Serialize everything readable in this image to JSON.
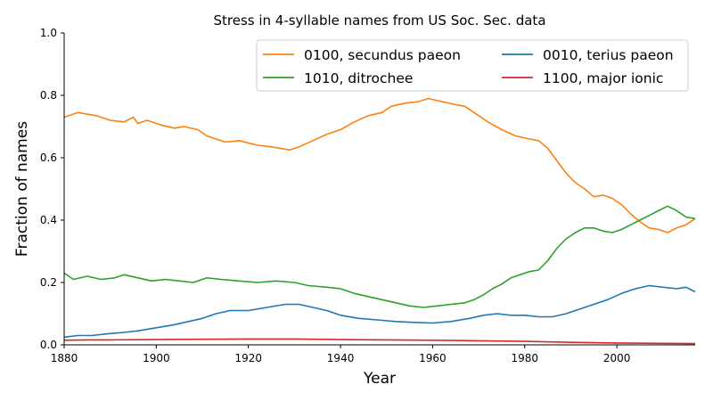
{
  "chart_data": {
    "type": "line",
    "title": "Stress in 4-syllable names from US Soc. Sec. data",
    "xlabel": "Year",
    "ylabel": "Fraction of names",
    "xlim": [
      1880,
      2017
    ],
    "ylim": [
      0.0,
      1.0
    ],
    "xticks": [
      "1880",
      "1900",
      "1920",
      "1940",
      "1960",
      "1980",
      "2000"
    ],
    "yticks": [
      "0.0",
      "0.2",
      "0.4",
      "0.6",
      "0.8",
      "1.0"
    ],
    "grid": false,
    "legend_placement": "upper right, two columns",
    "series": [
      {
        "name": "0100, secundus paeon",
        "color": "#ff7f0e",
        "points": [
          [
            1880,
            0.73
          ],
          [
            1883,
            0.745
          ],
          [
            1887,
            0.735
          ],
          [
            1890,
            0.72
          ],
          [
            1893,
            0.715
          ],
          [
            1895,
            0.73
          ],
          [
            1896,
            0.71
          ],
          [
            1898,
            0.72
          ],
          [
            1901,
            0.705
          ],
          [
            1904,
            0.695
          ],
          [
            1906,
            0.7
          ],
          [
            1909,
            0.69
          ],
          [
            1911,
            0.67
          ],
          [
            1915,
            0.65
          ],
          [
            1918,
            0.655
          ],
          [
            1922,
            0.64
          ],
          [
            1925,
            0.635
          ],
          [
            1929,
            0.625
          ],
          [
            1931,
            0.635
          ],
          [
            1934,
            0.655
          ],
          [
            1937,
            0.675
          ],
          [
            1940,
            0.69
          ],
          [
            1943,
            0.715
          ],
          [
            1946,
            0.735
          ],
          [
            1949,
            0.745
          ],
          [
            1951,
            0.765
          ],
          [
            1954,
            0.775
          ],
          [
            1957,
            0.78
          ],
          [
            1959,
            0.79
          ],
          [
            1962,
            0.78
          ],
          [
            1965,
            0.77
          ],
          [
            1967,
            0.765
          ],
          [
            1969,
            0.745
          ],
          [
            1972,
            0.715
          ],
          [
            1975,
            0.69
          ],
          [
            1978,
            0.67
          ],
          [
            1981,
            0.66
          ],
          [
            1983,
            0.655
          ],
          [
            1985,
            0.63
          ],
          [
            1987,
            0.59
          ],
          [
            1989,
            0.55
          ],
          [
            1991,
            0.52
          ],
          [
            1993,
            0.5
          ],
          [
            1995,
            0.475
          ],
          [
            1997,
            0.48
          ],
          [
            1999,
            0.47
          ],
          [
            2001,
            0.45
          ],
          [
            2003,
            0.42
          ],
          [
            2005,
            0.395
          ],
          [
            2007,
            0.375
          ],
          [
            2009,
            0.37
          ],
          [
            2011,
            0.36
          ],
          [
            2013,
            0.375
          ],
          [
            2015,
            0.385
          ],
          [
            2017,
            0.405
          ]
        ]
      },
      {
        "name": "1010, ditrochee",
        "color": "#2ca02c",
        "points": [
          [
            1880,
            0.23
          ],
          [
            1882,
            0.21
          ],
          [
            1885,
            0.22
          ],
          [
            1888,
            0.21
          ],
          [
            1891,
            0.215
          ],
          [
            1893,
            0.225
          ],
          [
            1896,
            0.215
          ],
          [
            1899,
            0.205
          ],
          [
            1902,
            0.21
          ],
          [
            1905,
            0.205
          ],
          [
            1908,
            0.2
          ],
          [
            1911,
            0.215
          ],
          [
            1914,
            0.21
          ],
          [
            1918,
            0.205
          ],
          [
            1922,
            0.2
          ],
          [
            1926,
            0.205
          ],
          [
            1930,
            0.2
          ],
          [
            1933,
            0.19
          ],
          [
            1937,
            0.185
          ],
          [
            1940,
            0.18
          ],
          [
            1943,
            0.165
          ],
          [
            1946,
            0.155
          ],
          [
            1949,
            0.145
          ],
          [
            1952,
            0.135
          ],
          [
            1955,
            0.125
          ],
          [
            1958,
            0.12
          ],
          [
            1961,
            0.125
          ],
          [
            1964,
            0.13
          ],
          [
            1967,
            0.135
          ],
          [
            1969,
            0.145
          ],
          [
            1971,
            0.16
          ],
          [
            1973,
            0.18
          ],
          [
            1975,
            0.195
          ],
          [
            1977,
            0.215
          ],
          [
            1979,
            0.225
          ],
          [
            1981,
            0.235
          ],
          [
            1983,
            0.24
          ],
          [
            1985,
            0.27
          ],
          [
            1987,
            0.31
          ],
          [
            1989,
            0.34
          ],
          [
            1991,
            0.36
          ],
          [
            1993,
            0.375
          ],
          [
            1995,
            0.375
          ],
          [
            1997,
            0.365
          ],
          [
            1999,
            0.36
          ],
          [
            2001,
            0.37
          ],
          [
            2003,
            0.385
          ],
          [
            2005,
            0.4
          ],
          [
            2007,
            0.415
          ],
          [
            2009,
            0.43
          ],
          [
            2011,
            0.445
          ],
          [
            2013,
            0.43
          ],
          [
            2015,
            0.41
          ],
          [
            2017,
            0.405
          ]
        ]
      },
      {
        "name": "0010, terius paeon",
        "color": "#1f77b4",
        "points": [
          [
            1880,
            0.025
          ],
          [
            1883,
            0.03
          ],
          [
            1886,
            0.03
          ],
          [
            1889,
            0.035
          ],
          [
            1893,
            0.04
          ],
          [
            1896,
            0.045
          ],
          [
            1900,
            0.055
          ],
          [
            1904,
            0.065
          ],
          [
            1907,
            0.075
          ],
          [
            1910,
            0.085
          ],
          [
            1913,
            0.1
          ],
          [
            1916,
            0.11
          ],
          [
            1920,
            0.11
          ],
          [
            1924,
            0.12
          ],
          [
            1928,
            0.13
          ],
          [
            1931,
            0.13
          ],
          [
            1934,
            0.12
          ],
          [
            1937,
            0.11
          ],
          [
            1940,
            0.095
          ],
          [
            1944,
            0.085
          ],
          [
            1948,
            0.08
          ],
          [
            1952,
            0.075
          ],
          [
            1956,
            0.072
          ],
          [
            1960,
            0.07
          ],
          [
            1964,
            0.075
          ],
          [
            1968,
            0.085
          ],
          [
            1971,
            0.095
          ],
          [
            1974,
            0.1
          ],
          [
            1977,
            0.095
          ],
          [
            1980,
            0.095
          ],
          [
            1983,
            0.09
          ],
          [
            1986,
            0.09
          ],
          [
            1989,
            0.1
          ],
          [
            1992,
            0.115
          ],
          [
            1995,
            0.13
          ],
          [
            1998,
            0.145
          ],
          [
            2001,
            0.165
          ],
          [
            2004,
            0.18
          ],
          [
            2007,
            0.19
          ],
          [
            2010,
            0.185
          ],
          [
            2013,
            0.18
          ],
          [
            2015,
            0.185
          ],
          [
            2017,
            0.17
          ]
        ]
      },
      {
        "name": "1100, major ionic",
        "color": "#d62728",
        "points": [
          [
            1880,
            0.015
          ],
          [
            1885,
            0.016
          ],
          [
            1890,
            0.016
          ],
          [
            1900,
            0.017
          ],
          [
            1910,
            0.018
          ],
          [
            1920,
            0.019
          ],
          [
            1930,
            0.019
          ],
          [
            1940,
            0.017
          ],
          [
            1950,
            0.016
          ],
          [
            1960,
            0.015
          ],
          [
            1970,
            0.013
          ],
          [
            1980,
            0.011
          ],
          [
            1990,
            0.008
          ],
          [
            2000,
            0.006
          ],
          [
            2010,
            0.005
          ],
          [
            2017,
            0.004
          ]
        ]
      }
    ]
  }
}
